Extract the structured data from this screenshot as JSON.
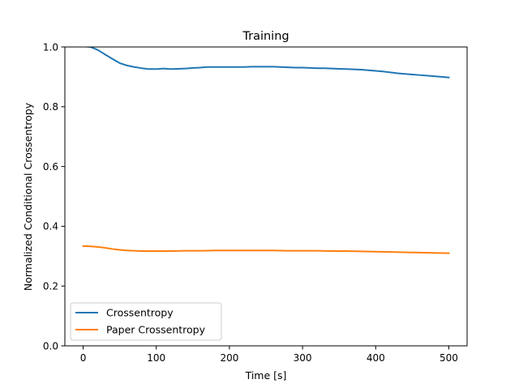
{
  "chart_data": {
    "type": "line",
    "title": "Training",
    "xlabel": "Time [s]",
    "ylabel": "Normalized Conditional Crossentropy",
    "xlim": [
      -25,
      525
    ],
    "ylim": [
      0.0,
      1.0
    ],
    "xticks": [
      0,
      100,
      200,
      300,
      400,
      500
    ],
    "xtick_labels": [
      "0",
      "100",
      "200",
      "300",
      "400",
      "500"
    ],
    "yticks": [
      0.0,
      0.2,
      0.4,
      0.6,
      0.8,
      1.0
    ],
    "ytick_labels": [
      "0.0",
      "0.2",
      "0.4",
      "0.6",
      "0.8",
      "1.0"
    ],
    "grid": false,
    "legend_position": "lower-left",
    "series": [
      {
        "name": "Crossentropy",
        "color": "#1f77b4",
        "x": [
          0,
          10,
          20,
          30,
          40,
          50,
          60,
          70,
          80,
          90,
          100,
          110,
          120,
          130,
          140,
          150,
          160,
          170,
          180,
          190,
          200,
          210,
          220,
          230,
          240,
          250,
          260,
          270,
          280,
          290,
          300,
          310,
          320,
          330,
          340,
          350,
          360,
          370,
          380,
          390,
          400,
          410,
          420,
          430,
          440,
          450,
          460,
          470,
          480,
          490,
          500
        ],
        "y": [
          1.002,
          1.0,
          0.99,
          0.975,
          0.96,
          0.946,
          0.938,
          0.933,
          0.929,
          0.926,
          0.926,
          0.928,
          0.926,
          0.927,
          0.928,
          0.93,
          0.931,
          0.933,
          0.933,
          0.933,
          0.933,
          0.933,
          0.933,
          0.934,
          0.934,
          0.934,
          0.934,
          0.933,
          0.932,
          0.931,
          0.931,
          0.93,
          0.929,
          0.929,
          0.928,
          0.927,
          0.926,
          0.925,
          0.924,
          0.922,
          0.92,
          0.918,
          0.915,
          0.912,
          0.91,
          0.908,
          0.906,
          0.904,
          0.902,
          0.9,
          0.898
        ]
      },
      {
        "name": "Paper Crossentropy",
        "color": "#ff7f0e",
        "x": [
          0,
          10,
          20,
          30,
          40,
          50,
          60,
          70,
          80,
          90,
          100,
          120,
          140,
          160,
          180,
          200,
          220,
          240,
          260,
          280,
          300,
          320,
          340,
          360,
          380,
          400,
          420,
          440,
          460,
          480,
          500
        ],
        "y": [
          0.334,
          0.333,
          0.331,
          0.328,
          0.324,
          0.321,
          0.319,
          0.318,
          0.317,
          0.317,
          0.317,
          0.317,
          0.318,
          0.318,
          0.319,
          0.319,
          0.319,
          0.319,
          0.319,
          0.318,
          0.318,
          0.318,
          0.317,
          0.317,
          0.316,
          0.315,
          0.314,
          0.313,
          0.312,
          0.311,
          0.31
        ]
      }
    ]
  }
}
